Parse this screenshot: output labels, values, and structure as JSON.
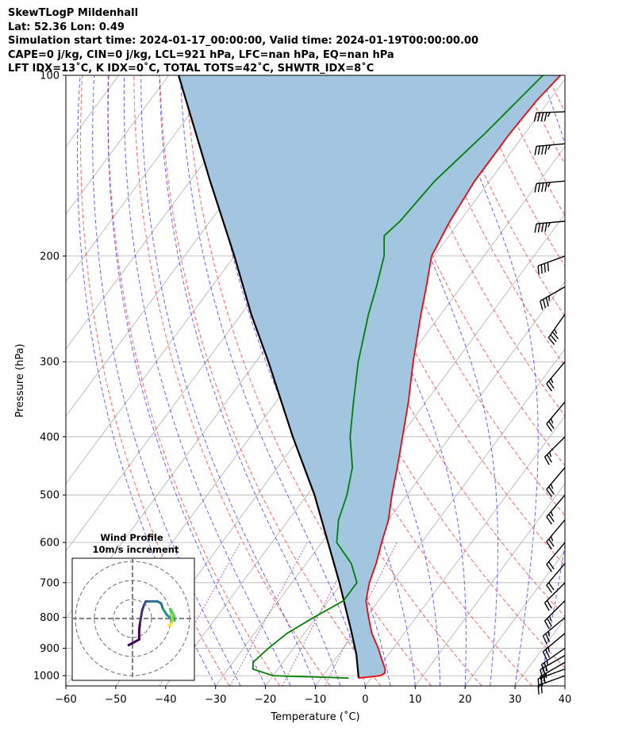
{
  "header": {
    "line1": "SkewTLogP Mildenhall",
    "line2": "Lat: 52.36   Lon: 0.49",
    "line3": "Simulation start time: 2024-01-17_00:00:00, Valid time: 2024-01-19T00:00:00.00",
    "line4": "CAPE=0 j/kg, CIN=0 j/kg, LCL=921 hPa, LFC=nan hPa, EQ=nan hPa",
    "line5": "LFT IDX=13˚C, K IDX=0˚C, TOTAL TOTS=42˚C, SHWTR_IDX=8˚C"
  },
  "chart_data": {
    "type": "line",
    "subtype": "skew-t log-p",
    "xlabel": "Temperature (˚C)",
    "ylabel": "Pressure (hPa)",
    "xlim": [
      -60,
      40
    ],
    "ylim": [
      1040,
      100
    ],
    "y_scale": "log",
    "x_ticks": [
      "−60",
      "−50",
      "−40",
      "−30",
      "−20",
      "−10",
      "0",
      "10",
      "20",
      "30",
      "40"
    ],
    "y_ticks": [
      "100",
      "200",
      "300",
      "400",
      "500",
      "600",
      "700",
      "800",
      "900",
      "1000"
    ],
    "grid": true,
    "temperature": {
      "color": "#ff0000",
      "points": [
        [
          1009,
          -2.5
        ],
        [
          1000,
          1.5
        ],
        [
          990,
          2
        ],
        [
          975,
          1.5
        ],
        [
          950,
          0
        ],
        [
          925,
          -1.5
        ],
        [
          900,
          -3
        ],
        [
          850,
          -6.5
        ],
        [
          800,
          -9.5
        ],
        [
          750,
          -12.5
        ],
        [
          700,
          -14.5
        ],
        [
          650,
          -16
        ],
        [
          600,
          -18
        ],
        [
          550,
          -20
        ],
        [
          500,
          -23
        ],
        [
          450,
          -26
        ],
        [
          400,
          -29.5
        ],
        [
          350,
          -33.5
        ],
        [
          300,
          -38.5
        ],
        [
          250,
          -44
        ],
        [
          225,
          -47
        ],
        [
          200,
          -50.5
        ],
        [
          175,
          -52
        ],
        [
          150,
          -53
        ],
        [
          125,
          -53
        ],
        [
          110,
          -52.5
        ],
        [
          100,
          -51.5
        ]
      ]
    },
    "dewpoint": {
      "color": "#008000",
      "points": [
        [
          1009,
          -4.5
        ],
        [
          1000,
          -20
        ],
        [
          975,
          -25
        ],
        [
          950,
          -26
        ],
        [
          900,
          -25
        ],
        [
          850,
          -23.5
        ],
        [
          800,
          -20.5
        ],
        [
          750,
          -17
        ],
        [
          700,
          -17
        ],
        [
          650,
          -21
        ],
        [
          600,
          -27
        ],
        [
          550,
          -30
        ],
        [
          500,
          -32
        ],
        [
          450,
          -35
        ],
        [
          400,
          -40
        ],
        [
          350,
          -44.5
        ],
        [
          300,
          -49.5
        ],
        [
          250,
          -54.5
        ],
        [
          225,
          -57
        ],
        [
          200,
          -60
        ],
        [
          185,
          -63
        ],
        [
          175,
          -62
        ],
        [
          150,
          -61
        ],
        [
          125,
          -58
        ],
        [
          100,
          -55
        ]
      ]
    },
    "parcel": {
      "color": "#000000",
      "points": [
        [
          1009,
          -2.5
        ],
        [
          921,
          -6.5
        ],
        [
          850,
          -10.5
        ],
        [
          700,
          -20.5
        ],
        [
          500,
          -38.5
        ],
        [
          400,
          -51.5
        ],
        [
          300,
          -67.5
        ],
        [
          250,
          -78
        ],
        [
          200,
          -90
        ],
        [
          150,
          -106
        ],
        [
          100,
          -128
        ]
      ]
    },
    "shaded_area": {
      "color": "#a2c6df"
    },
    "dry_adiabat_color": "#ff0000",
    "moist_adiabat_color": "#0000ff",
    "mixing_ratio_color": "#800080",
    "wind_barbs": [
      {
        "p": 1000,
        "dir": 250,
        "speed": 22
      },
      {
        "p": 975,
        "dir": 250,
        "speed": 25
      },
      {
        "p": 950,
        "dir": 240,
        "speed": 25
      },
      {
        "p": 925,
        "dir": 240,
        "speed": 25
      },
      {
        "p": 900,
        "dir": 235,
        "speed": 25
      },
      {
        "p": 850,
        "dir": 230,
        "speed": 25
      },
      {
        "p": 800,
        "dir": 230,
        "speed": 25
      },
      {
        "p": 750,
        "dir": 225,
        "speed": 25
      },
      {
        "p": 700,
        "dir": 225,
        "speed": 20
      },
      {
        "p": 650,
        "dir": 220,
        "speed": 20
      },
      {
        "p": 600,
        "dir": 220,
        "speed": 20
      },
      {
        "p": 550,
        "dir": 220,
        "speed": 25
      },
      {
        "p": 500,
        "dir": 220,
        "speed": 25
      },
      {
        "p": 450,
        "dir": 220,
        "speed": 25
      },
      {
        "p": 400,
        "dir": 225,
        "speed": 25
      },
      {
        "p": 350,
        "dir": 220,
        "speed": 25
      },
      {
        "p": 300,
        "dir": 220,
        "speed": 25
      },
      {
        "p": 250,
        "dir": 215,
        "speed": 35
      },
      {
        "p": 225,
        "dir": 240,
        "speed": 35
      },
      {
        "p": 200,
        "dir": 250,
        "speed": 40
      },
      {
        "p": 175,
        "dir": 265,
        "speed": 45
      },
      {
        "p": 150,
        "dir": 265,
        "speed": 45
      },
      {
        "p": 130,
        "dir": 265,
        "speed": 45
      },
      {
        "p": 115,
        "dir": 268,
        "speed": 45
      }
    ],
    "hodograph": {
      "title": "Wind Profile",
      "subtitle": "10m/s increment",
      "rings": [
        10,
        20,
        30
      ],
      "points": [
        [
          -2,
          14
        ],
        [
          3.5,
          11
        ],
        [
          3.5,
          6
        ],
        [
          4,
          2
        ],
        [
          5,
          -4
        ],
        [
          6,
          -7
        ],
        [
          7,
          -9
        ],
        [
          9,
          -9
        ],
        [
          13,
          -9
        ],
        [
          15,
          -8
        ],
        [
          16,
          -5
        ],
        [
          18,
          -2
        ],
        [
          20,
          0
        ],
        [
          22,
          1
        ],
        [
          22,
          -1
        ],
        [
          21,
          -3
        ],
        [
          20,
          -5
        ],
        [
          20.5,
          -2
        ],
        [
          21,
          1
        ],
        [
          20,
          3
        ],
        [
          19,
          3.5
        ],
        [
          20,
          4
        ]
      ]
    }
  }
}
